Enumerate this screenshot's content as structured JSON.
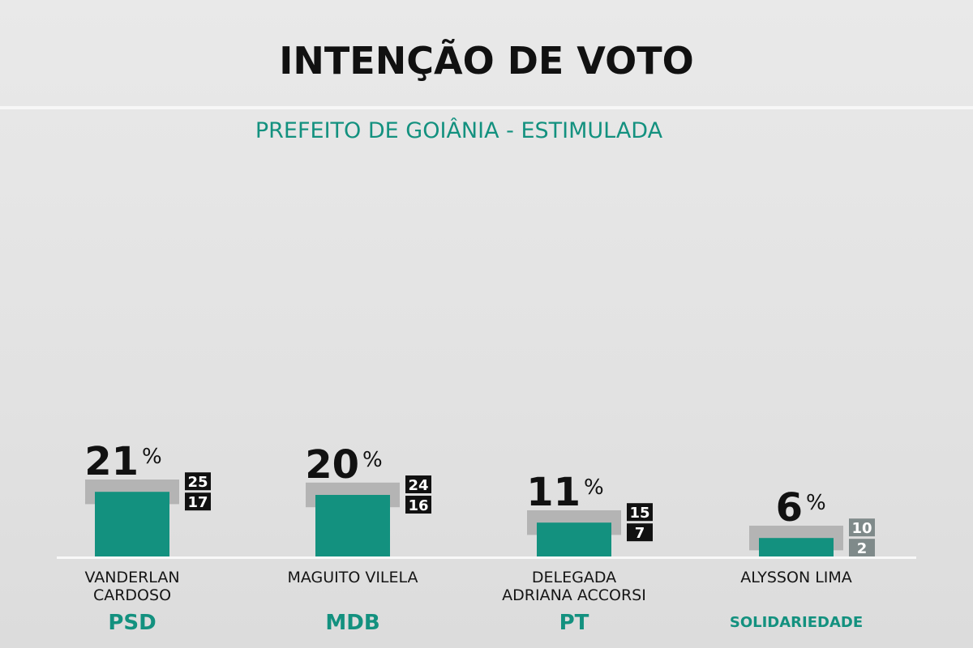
{
  "chart_data": {
    "type": "bar",
    "title": "INTENÇÃO DE VOTO",
    "subtitle": "PREFEITO DE GOIÂNIA - ESTIMULADA",
    "unit": "%",
    "categories": [
      {
        "name": [
          "VANDERLAN",
          "CARDOSO"
        ],
        "party": "PSD"
      },
      {
        "name": [
          "MAGUITO VILELA"
        ],
        "party": "MDB"
      },
      {
        "name": [
          "DELEGADA",
          "ADRIANA ACCORSI"
        ],
        "party": "PT"
      },
      {
        "name": [
          "ALYSSON LIMA"
        ],
        "party": "SOLIDARIEDADE"
      }
    ],
    "values": [
      21,
      20,
      11,
      6
    ],
    "upper": [
      25,
      24,
      15,
      10
    ],
    "lower": [
      17,
      16,
      7,
      2
    ],
    "colors": {
      "bar": "#13917f",
      "range": "#b4b4b4",
      "box": "#111111",
      "box_last": "#7f8a8a",
      "party": "#13917f"
    }
  }
}
